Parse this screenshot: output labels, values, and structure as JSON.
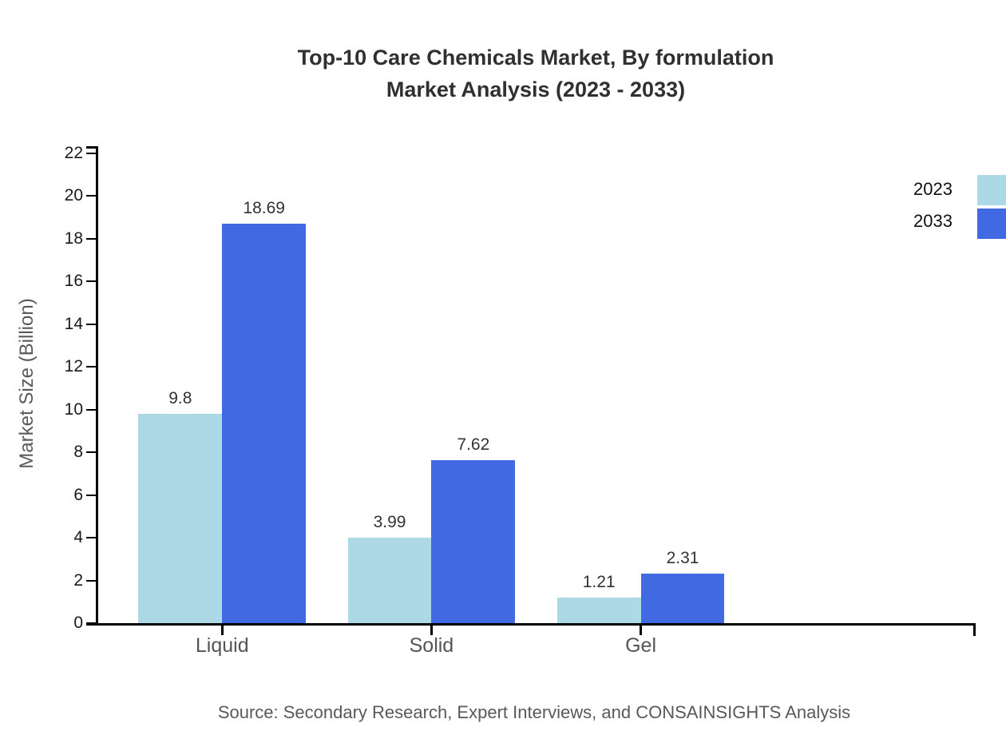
{
  "title": {
    "line1": "Top-10 Care Chemicals Market, By formulation",
    "line2": "Market Analysis (2023 - 2033)"
  },
  "source": "Source: Secondary Research, Expert Interviews, and CONSAINSIGHTS Analysis",
  "chart_data": {
    "type": "bar",
    "categories": [
      "Liquid",
      "Solid",
      "Gel"
    ],
    "series": [
      {
        "name": "2023",
        "color": "#ADD8E6",
        "values": [
          9.8,
          3.99,
          1.21
        ]
      },
      {
        "name": "2033",
        "color": "#4169E1",
        "values": [
          18.69,
          7.62,
          2.31
        ]
      }
    ],
    "title": "Top-10 Care Chemicals Market, By formulation Market Analysis (2023 - 2033)",
    "xlabel": "",
    "ylabel": "Market Size (Billion)",
    "ylim": [
      0,
      22.3
    ],
    "yticks": [
      0,
      2,
      4,
      6,
      8,
      10,
      12,
      14,
      16,
      18,
      20,
      22
    ],
    "grid": false,
    "legend_position": "top-right",
    "bar_width_frac": 0.4,
    "x_margin": 0.6
  },
  "colors": {
    "bar_2023": "#ADD8E6",
    "bar_2033": "#4169E1",
    "axis": "#000000",
    "title_text": "#303030",
    "tick_text": "#1a1a1a",
    "category_text": "#555555",
    "value_text": "#333333",
    "muted_text": "#595959"
  }
}
